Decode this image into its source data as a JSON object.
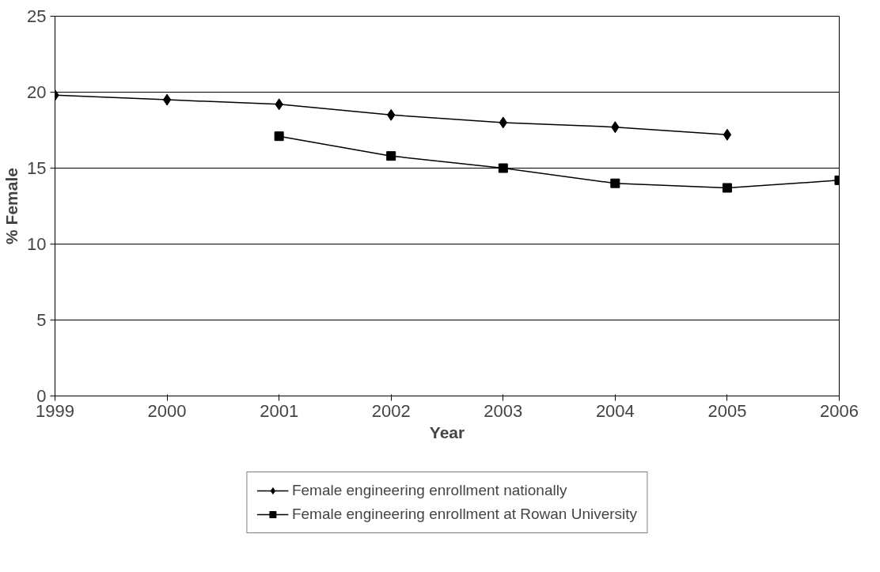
{
  "chart_data": {
    "type": "line",
    "xlabel": "Year",
    "ylabel": "% Female",
    "xlim": [
      1999,
      2006
    ],
    "xticks": [
      1999,
      2000,
      2001,
      2002,
      2003,
      2004,
      2005,
      2006
    ],
    "ylim": [
      0,
      25
    ],
    "yticks": [
      0,
      5,
      10,
      15,
      20,
      25
    ],
    "grid": "y",
    "legend": "bottom",
    "line_style": "solid",
    "series": [
      {
        "name": "Female engineering enrollment nationally",
        "color": "#000000",
        "marker": "diamond",
        "x": [
          1999,
          2000,
          2001,
          2002,
          2003,
          2004,
          2005
        ],
        "values": [
          19.8,
          19.5,
          19.2,
          18.5,
          18.0,
          17.7,
          17.2
        ]
      },
      {
        "name": "Female engineering enrollment at Rowan University",
        "color": "#000000",
        "marker": "square",
        "x": [
          2001,
          2002,
          2003,
          2004,
          2005,
          2006
        ],
        "values": [
          17.1,
          15.8,
          15.0,
          14.0,
          13.7,
          14.2
        ]
      }
    ]
  }
}
